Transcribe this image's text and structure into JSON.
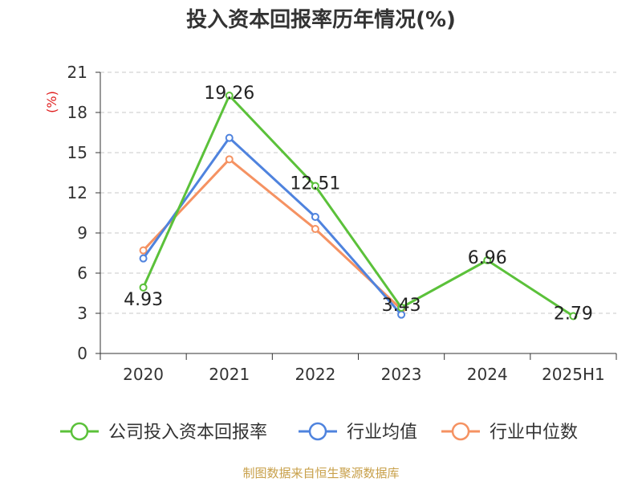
{
  "chart_data": {
    "type": "line",
    "title": "投入资本回报率历年情况(%)",
    "ylabel": "(%)",
    "xlabel": "",
    "categories": [
      "2020",
      "2021",
      "2022",
      "2023",
      "2024",
      "2025H1"
    ],
    "ylim": [
      0,
      21
    ],
    "yticks": [
      0,
      3,
      6,
      9,
      12,
      15,
      18,
      21
    ],
    "grid": true,
    "legend_position": "bottom",
    "series": [
      {
        "name": "公司投入资本回报率",
        "color": "#5bc13a",
        "values": [
          4.93,
          19.26,
          12.51,
          3.43,
          6.96,
          2.79
        ],
        "show_labels": true
      },
      {
        "name": "行业均值",
        "color": "#4f83de",
        "values": [
          7.1,
          16.1,
          10.2,
          2.9,
          null,
          null
        ],
        "show_labels": false
      },
      {
        "name": "行业中位数",
        "color": "#f59262",
        "values": [
          7.7,
          14.5,
          9.3,
          3.3,
          null,
          null
        ],
        "show_labels": false
      }
    ]
  },
  "footer": {
    "source": "制图数据来自恒生聚源数据库"
  }
}
